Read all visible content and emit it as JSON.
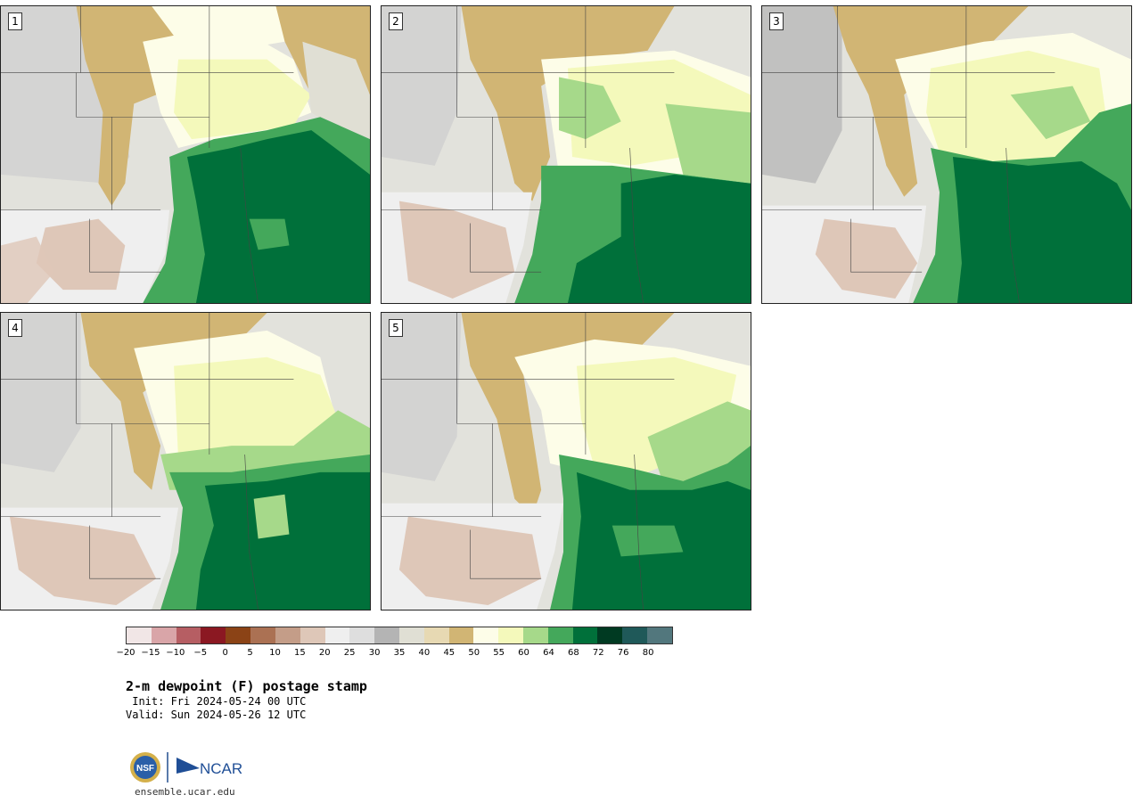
{
  "panels": [
    {
      "label": "1"
    },
    {
      "label": "2"
    },
    {
      "label": "3"
    },
    {
      "label": "4"
    },
    {
      "label": "5"
    }
  ],
  "colorbar": {
    "colors": [
      "#f1e6e6",
      "#d9a5a8",
      "#b65e63",
      "#8b1822",
      "#8b4316",
      "#ab7153",
      "#c49d88",
      "#dec7b8",
      "#efefef",
      "#dedede",
      "#b4b4b4",
      "#e0dfd4",
      "#e7d9b3",
      "#d1b574",
      "#fdfde8",
      "#f4f9bb",
      "#a6d98a",
      "#44a85b",
      "#00703a",
      "#003a22",
      "#1f5959",
      "#52777d"
    ],
    "tick_labels": [
      "−20",
      "−15",
      "−10",
      "−5",
      "0",
      "5",
      "10",
      "15",
      "20",
      "25",
      "30",
      "35",
      "40",
      "45",
      "50",
      "55",
      "60",
      "64",
      "68",
      "72",
      "76",
      "80"
    ]
  },
  "title": "2-m dewpoint (F) postage stamp",
  "init_text": " Init: Fri 2024-05-24 00 UTC",
  "valid_text": "Valid: Sun 2024-05-26 12 UTC",
  "logos": {
    "nsf": "NSF",
    "ncar": "NCAR"
  },
  "website": "ensemble.ucar.edu"
}
